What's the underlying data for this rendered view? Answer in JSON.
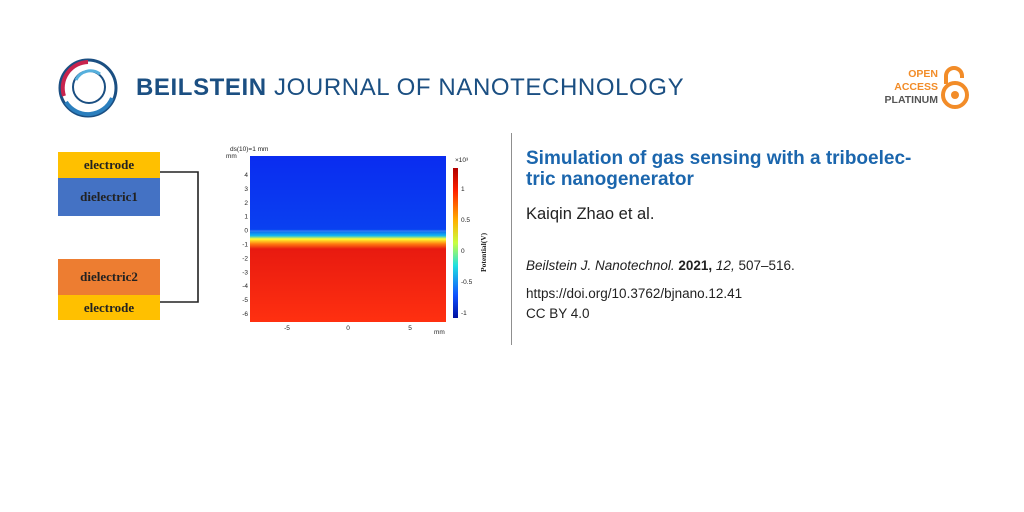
{
  "header": {
    "journal_bold": "BEILSTEIN",
    "journal_rest": "JOURNAL OF NANOTECHNOLOGY",
    "open_access_line1": "OPEN",
    "open_access_line2": "ACCESS",
    "open_access_line3": "PLATINUM"
  },
  "figure": {
    "layers": [
      "electrode",
      "dielectric1",
      "dielectric2",
      "electrode"
    ],
    "layer_colors": [
      "#ffc000",
      "#4472c4",
      "#ed7d31",
      "#ffc000"
    ],
    "plot_caption": "ds(10)=1 mm",
    "y_unit": "mm",
    "x_unit": "mm",
    "y_ticks": [
      "4",
      "3",
      "2",
      "1",
      "0",
      "-1",
      "-2",
      "-3",
      "-4",
      "-5",
      "-6"
    ],
    "x_ticks": [
      "-5",
      "0",
      "5"
    ],
    "colorbar_exponent": "×10³",
    "colorbar_ticks": [
      "1",
      "0.5",
      "0",
      "-0.5",
      "-1"
    ],
    "colorbar_label": "Potential(V)"
  },
  "article": {
    "title": "Simulation of gas sensing with a triboelec-tric nanogenerator",
    "title_line1": "Simulation of gas sensing with a triboelec-",
    "title_line2": "tric nanogenerator",
    "authors": "Kaiqin Zhao et al.",
    "journal_abbrev": "Beilstein J. Nanotechnol.",
    "year": "2021,",
    "volume": "12,",
    "pages": "507–516.",
    "doi": "https://doi.org/10.3762/bjnano.12.41",
    "license": "CC BY 4.0"
  }
}
